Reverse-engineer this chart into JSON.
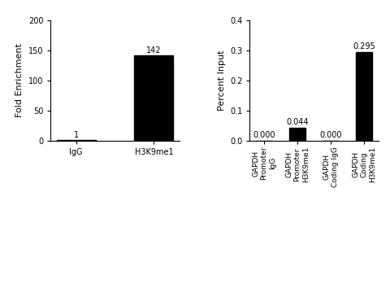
{
  "left_chart": {
    "categories": [
      "IgG",
      "H3K9me1"
    ],
    "values": [
      1,
      142
    ],
    "bar_color": "#000000",
    "ylabel": "Fold Enrichment",
    "ylim": [
      0,
      200
    ],
    "yticks": [
      0,
      50,
      100,
      150,
      200
    ],
    "bar_labels": [
      "1",
      "142"
    ],
    "bar_width": 0.5
  },
  "right_chart": {
    "categories": [
      "GAPDH\nPromoter\nIgG",
      "GAPDH\nPromoter\nH3K9me1",
      "GAPDH\nCoding IgG",
      "GAPDH\nCoding\nH3K9me1"
    ],
    "values": [
      0.0,
      0.044,
      0.0,
      0.295
    ],
    "bar_color": "#000000",
    "ylabel": "Percent Input",
    "ylim": [
      0,
      0.4
    ],
    "yticks": [
      0.0,
      0.1,
      0.2,
      0.3,
      0.4
    ],
    "bar_labels": [
      "0.000",
      "0.044",
      "0.000",
      "0.295"
    ],
    "bar_width": 0.5
  },
  "background_color": "#ffffff",
  "label_fontsize": 8,
  "tick_fontsize": 7,
  "bar_label_fontsize": 7
}
